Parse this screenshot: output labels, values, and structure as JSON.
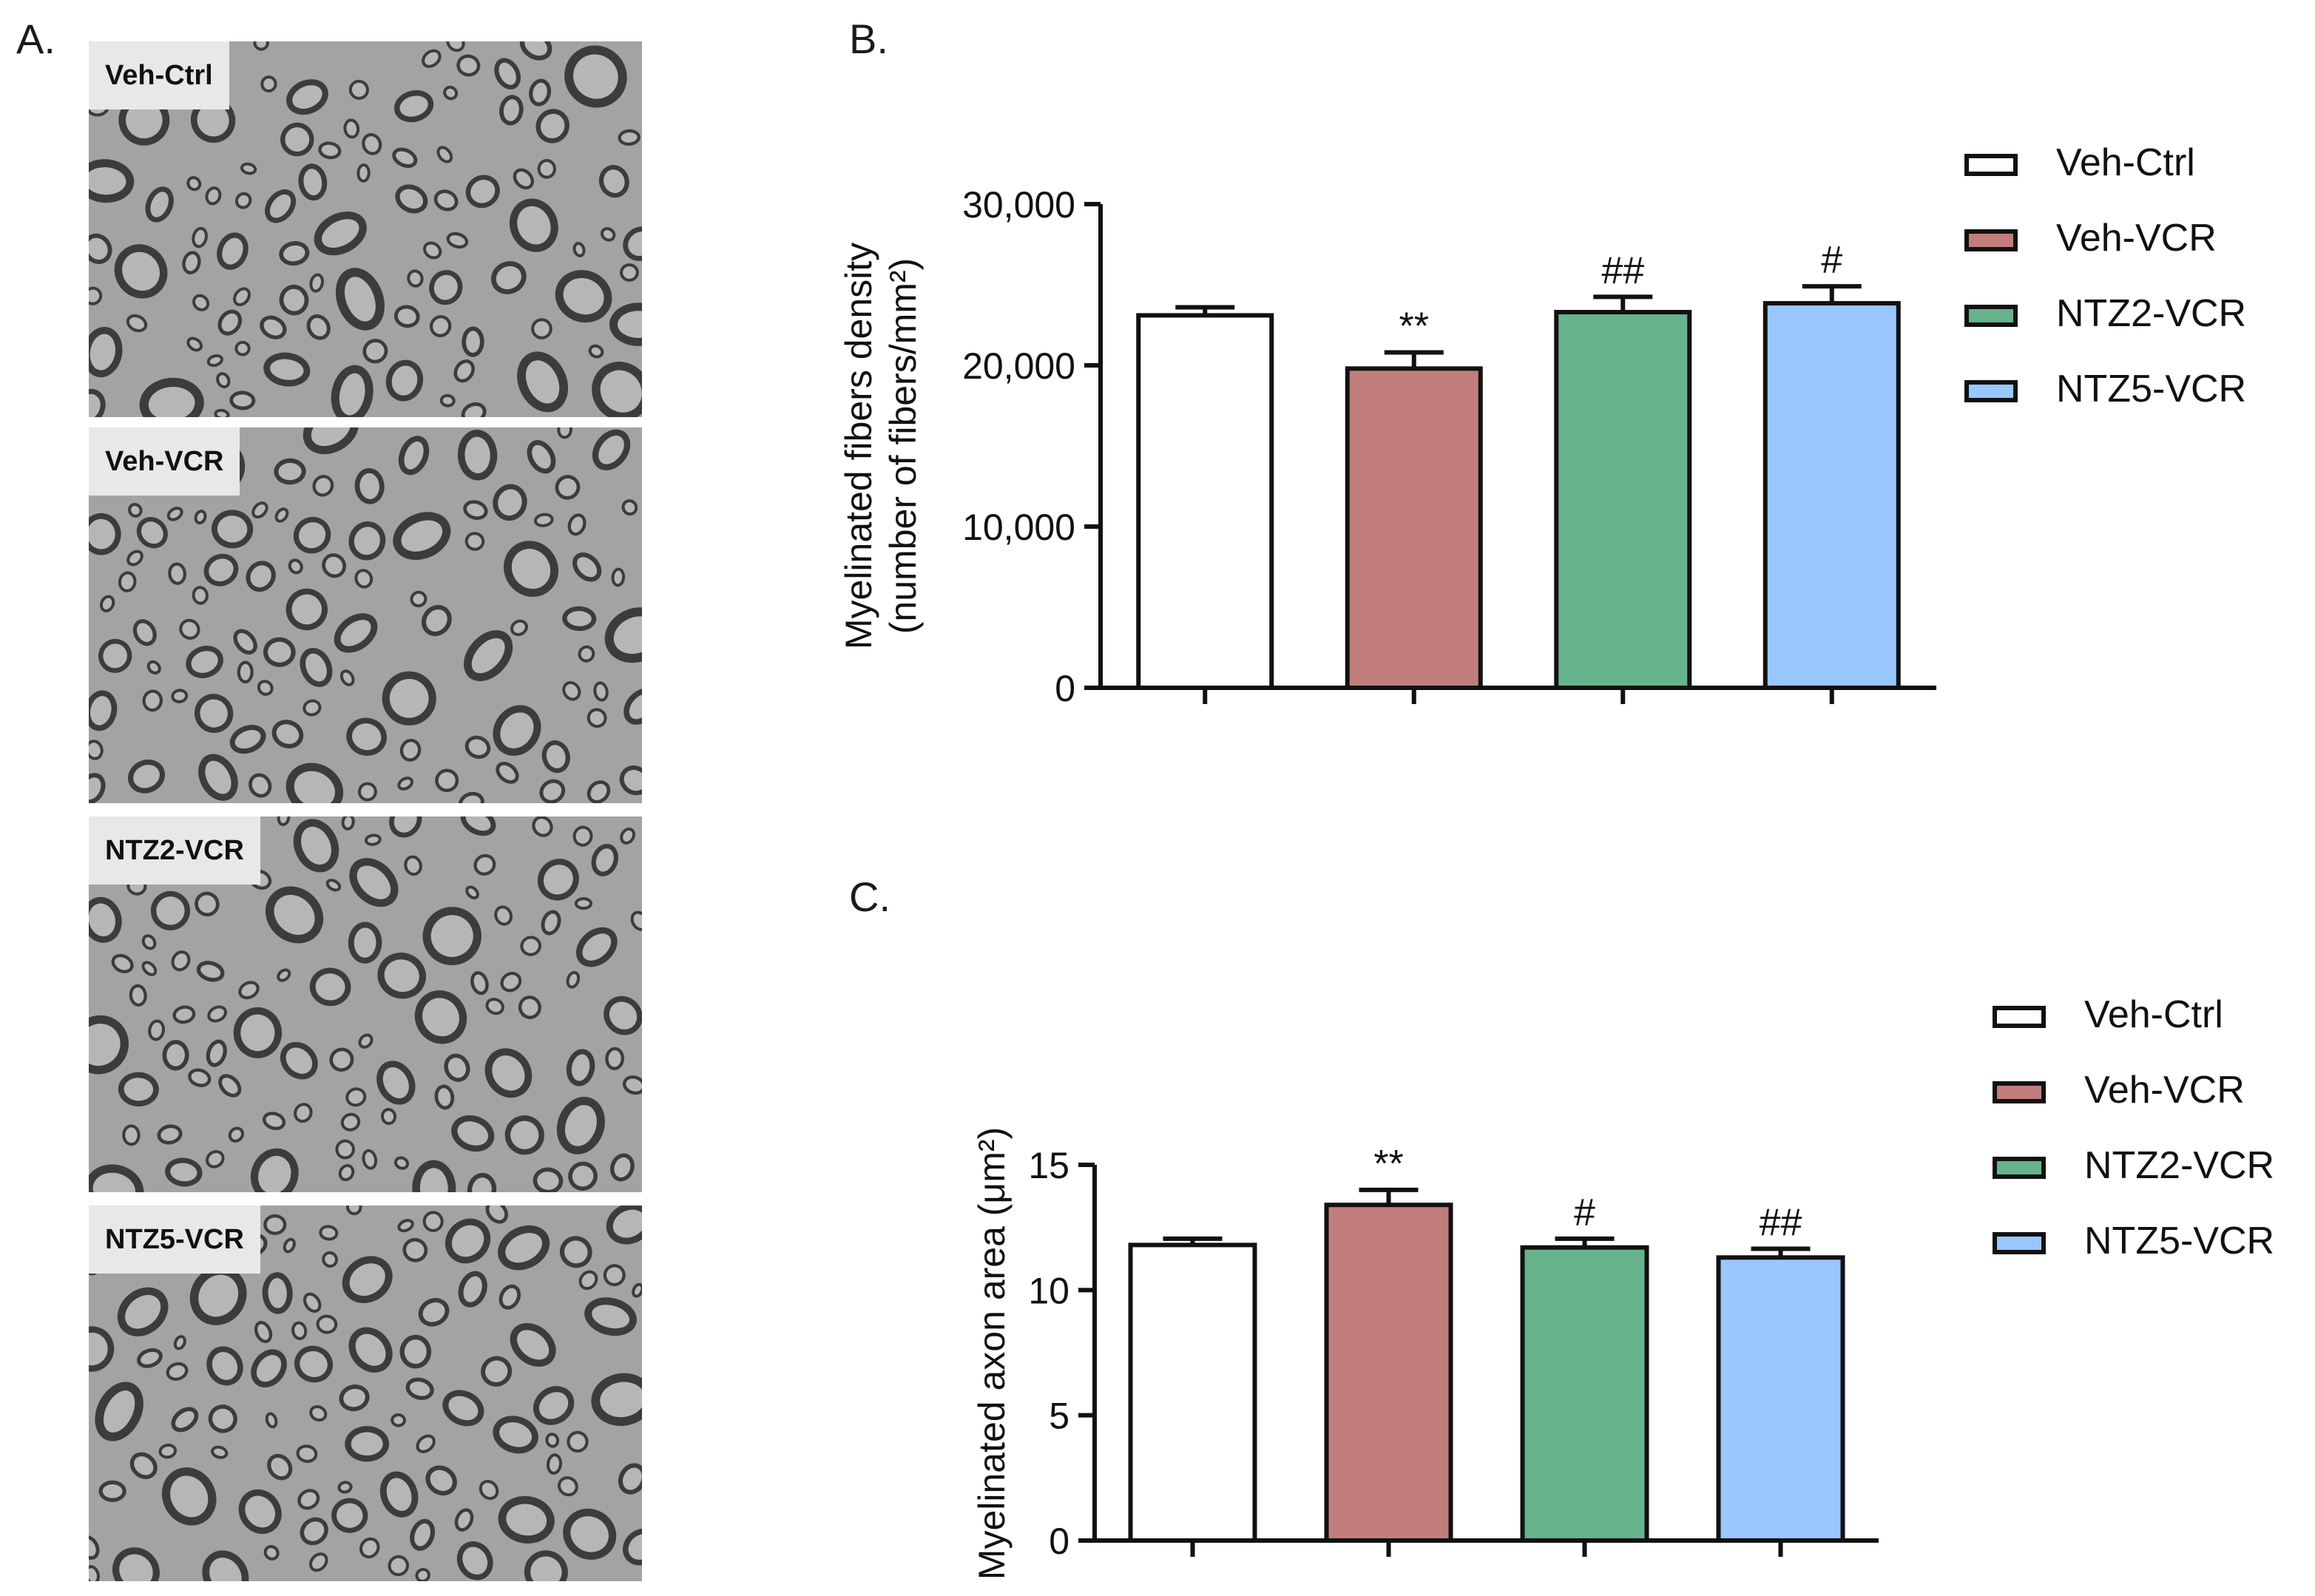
{
  "panels": {
    "a": {
      "letter": "A."
    },
    "b": {
      "letter": "B."
    },
    "c": {
      "letter": "C."
    }
  },
  "micrographs": [
    {
      "label": "Veh-Ctrl"
    },
    {
      "label": "Veh-VCR"
    },
    {
      "label": "NTZ2-VCR"
    },
    {
      "label": "NTZ5-VCR"
    }
  ],
  "colors": {
    "Veh-Ctrl": "#ffffff",
    "Veh-VCR": "#c17d7b",
    "NTZ2-VCR": "#66b38c",
    "NTZ5-VCR": "#99c7ff",
    "outline": "#111111"
  },
  "chart_data": [
    {
      "type": "bar",
      "panel": "B.",
      "categories": [
        "Veh-Ctrl",
        "Veh-VCR",
        "NTZ2-VCR",
        "NTZ5-VCR"
      ],
      "values": [
        23100,
        19800,
        23300,
        23850
      ],
      "errors": [
        500,
        1000,
        950,
        1050
      ],
      "annotations": [
        "",
        "**",
        "##",
        "#"
      ],
      "ylabel_line1": "Myelinated fibers density",
      "ylabel_line2": "(number of fibers/mm²)",
      "ylim": [
        0,
        30000
      ],
      "yticks": [
        0,
        10000,
        20000,
        30000
      ],
      "ytick_labels": [
        "0",
        "10,000",
        "20,000",
        "30,000"
      ],
      "legend": [
        "Veh-Ctrl",
        "Veh-VCR",
        "NTZ2-VCR",
        "NTZ5-VCR"
      ],
      "legend_position": "right"
    },
    {
      "type": "bar",
      "panel": "C.",
      "categories": [
        "Veh-Ctrl",
        "Veh-VCR",
        "NTZ2-VCR",
        "NTZ5-VCR"
      ],
      "values": [
        11.8,
        13.4,
        11.7,
        11.3
      ],
      "errors": [
        0.25,
        0.6,
        0.35,
        0.35
      ],
      "annotations": [
        "",
        "**",
        "#",
        "##"
      ],
      "ylabel": "Myelinated axon area (μm²)",
      "ylim": [
        0,
        15
      ],
      "yticks": [
        0,
        5,
        10,
        15
      ],
      "ytick_labels": [
        "0",
        "5",
        "10",
        "15"
      ],
      "legend": [
        "Veh-Ctrl",
        "Veh-VCR",
        "NTZ2-VCR",
        "NTZ5-VCR"
      ],
      "legend_position": "right"
    }
  ]
}
